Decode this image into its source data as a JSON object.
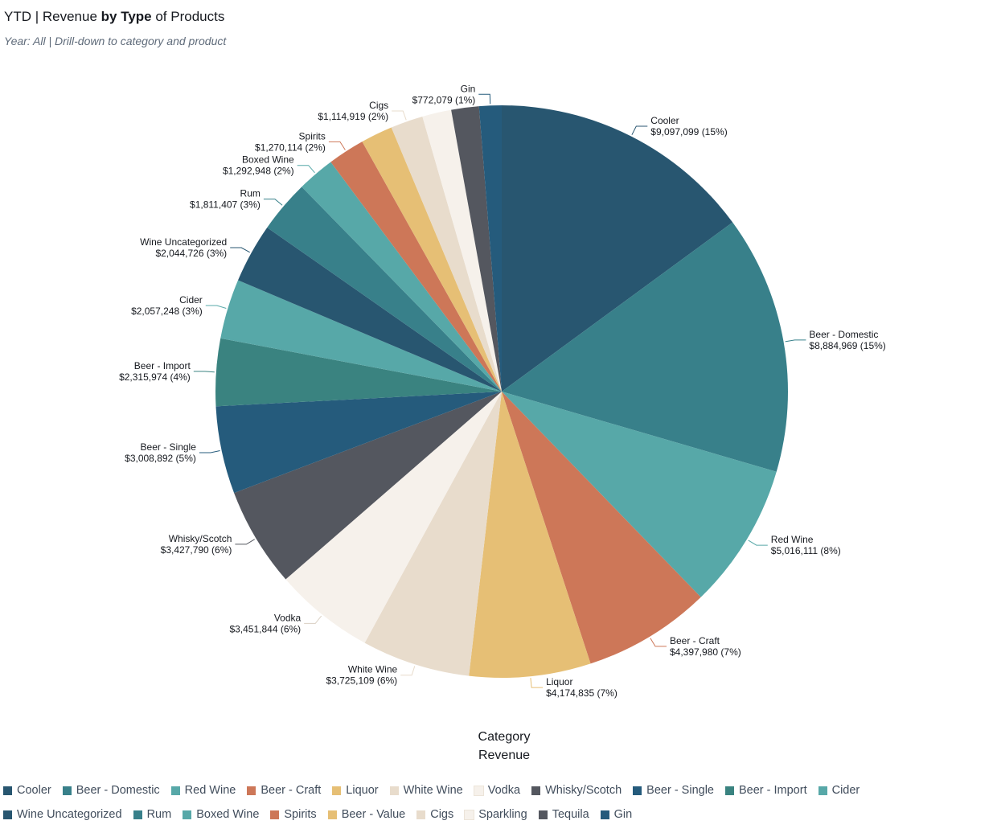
{
  "title": {
    "part1": "YTD | Revenue ",
    "bold1": "by Type",
    "part2": " of Products"
  },
  "subtitle": "Year: All | Drill-down to category and product",
  "chart_data": {
    "type": "pie",
    "category_label": "Category",
    "value_label": "Revenue",
    "slices": [
      {
        "name": "Cooler",
        "value": 9097099,
        "label": "$9,097,099 (15%)",
        "color": "#285670"
      },
      {
        "name": "Beer - Domestic",
        "value": 8884969,
        "label": "$8,884,969 (15%)",
        "color": "#38808a"
      },
      {
        "name": "Red Wine",
        "value": 5016111,
        "label": "$5,016,111 (8%)",
        "color": "#57a8a8"
      },
      {
        "name": "Beer - Craft",
        "value": 4397980,
        "label": "$4,397,980 (7%)",
        "color": "#cd7758"
      },
      {
        "name": "Liquor",
        "value": 4174835,
        "label": "$4,174,835 (7%)",
        "color": "#e6bf75"
      },
      {
        "name": "White Wine",
        "value": 3725109,
        "label": "$3,725,109 (6%)",
        "color": "#e8dccc"
      },
      {
        "name": "Vodka",
        "value": 3451844,
        "label": "$3,451,844 (6%)",
        "color": "#f6f1eb"
      },
      {
        "name": "Whisky/Scotch",
        "value": 3427790,
        "label": "$3,427,790 (6%)",
        "color": "#54575f"
      },
      {
        "name": "Beer - Single",
        "value": 3008892,
        "label": "$3,008,892 (5%)",
        "color": "#255b7c"
      },
      {
        "name": "Beer - Import",
        "value": 2315974,
        "label": "$2,315,974 (4%)",
        "color": "#3a8380"
      },
      {
        "name": "Cider",
        "value": 2057248,
        "label": "$2,057,248 (3%)",
        "color": "#57a8a8"
      },
      {
        "name": "Wine Uncategorized",
        "value": 2044726,
        "label": "$2,044,726 (3%)",
        "color": "#285670"
      },
      {
        "name": "Rum",
        "value": 1811407,
        "label": "$1,811,407 (3%)",
        "color": "#38808a"
      },
      {
        "name": "Boxed Wine",
        "value": 1292948,
        "label": "$1,292,948 (2%)",
        "color": "#57a8a8"
      },
      {
        "name": "Spirits",
        "value": 1270114,
        "label": "$1,270,114 (2%)",
        "color": "#cd7758"
      },
      {
        "name": "Beer - Value",
        "value": 1100000,
        "label": "",
        "color": "#e6bf75"
      },
      {
        "name": "Cigs",
        "value": 1114919,
        "label": "$1,114,919 (2%)",
        "color": "#e8dccc"
      },
      {
        "name": "Sparkling",
        "value": 1000000,
        "label": "",
        "color": "#f6f1eb"
      },
      {
        "name": "Tequila",
        "value": 950000,
        "label": "",
        "color": "#54575f"
      },
      {
        "name": "Gin",
        "value": 772079,
        "label": "$772,079 (1%)",
        "color": "#255b7c"
      }
    ]
  },
  "legend": [
    {
      "name": "Cooler",
      "color": "#285670"
    },
    {
      "name": "Beer - Domestic",
      "color": "#38808a"
    },
    {
      "name": "Red Wine",
      "color": "#57a8a8"
    },
    {
      "name": "Beer - Craft",
      "color": "#cd7758"
    },
    {
      "name": "Liquor",
      "color": "#e6bf75"
    },
    {
      "name": "White Wine",
      "color": "#e8dccc"
    },
    {
      "name": "Vodka",
      "color": "#f6f1eb"
    },
    {
      "name": "Whisky/Scotch",
      "color": "#54575f"
    },
    {
      "name": "Beer - Single",
      "color": "#255b7c"
    },
    {
      "name": "Beer - Import",
      "color": "#3a8380"
    },
    {
      "name": "Cider",
      "color": "#57a8a8"
    },
    {
      "name": "Wine Uncategorized",
      "color": "#285670"
    },
    {
      "name": "Rum",
      "color": "#38808a"
    },
    {
      "name": "Boxed Wine",
      "color": "#57a8a8"
    },
    {
      "name": "Spirits",
      "color": "#cd7758"
    },
    {
      "name": "Beer - Value",
      "color": "#e6bf75"
    },
    {
      "name": "Cigs",
      "color": "#e8dccc"
    },
    {
      "name": "Sparkling",
      "color": "#f6f1eb"
    },
    {
      "name": "Tequila",
      "color": "#54575f"
    },
    {
      "name": "Gin",
      "color": "#255b7c"
    }
  ]
}
